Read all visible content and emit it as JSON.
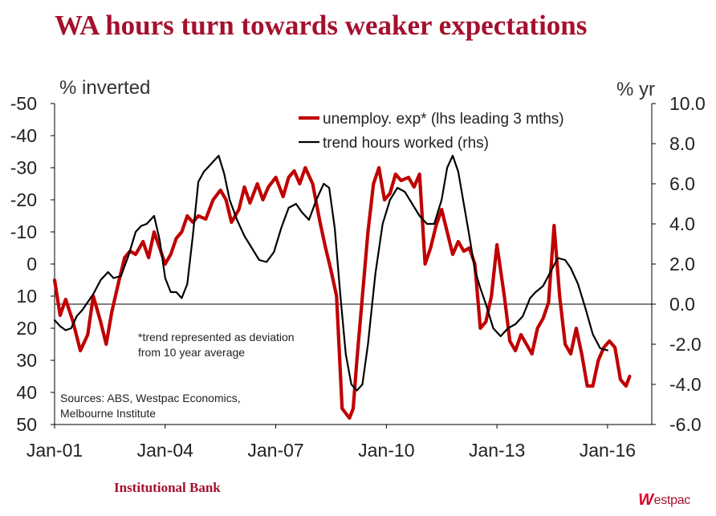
{
  "title": "WA hours turn towards weaker expectations",
  "logos": {
    "left": "Institutional Bank",
    "right_mark": "W",
    "right_text": "estpac"
  },
  "colors": {
    "title": "#a5102d",
    "series1": "#c00000",
    "series2": "#000000",
    "axis": "#000000"
  },
  "chart_data": {
    "type": "line",
    "ylabel_left": "% inverted",
    "ylabel_right": "% yr",
    "left_axis": {
      "min": -50,
      "max": 50,
      "inverted": true,
      "ticks": [
        "-50",
        "-40",
        "-30",
        "-20",
        "-10",
        "0",
        "10",
        "20",
        "30",
        "40",
        "50"
      ]
    },
    "right_axis": {
      "min": -6.0,
      "max": 10.0,
      "ticks": [
        "10.0",
        "8.0",
        "6.0",
        "4.0",
        "2.0",
        "0.0",
        "-2.0",
        "-4.0",
        "-6.0"
      ]
    },
    "x_axis": {
      "min": 2001.0,
      "max": 2017.2,
      "tick_labels": [
        "Jan-01",
        "Jan-04",
        "Jan-07",
        "Jan-10",
        "Jan-13",
        "Jan-16"
      ],
      "tick_values": [
        2001,
        2004,
        2007,
        2010,
        2013,
        2016
      ]
    },
    "legend": {
      "position": "top-right",
      "entries": [
        "unemploy. exp* (lhs leading 3 mths)",
        "trend hours worked (rhs)"
      ]
    },
    "annotations": [
      "*trend represented as deviation",
      "from 10 year average",
      "Sources: ABS, Westpac Economics,",
      "Melbourne Institute"
    ],
    "series": [
      {
        "name": "unemploy. exp* (lhs leading 3 mths)",
        "axis": "left",
        "x": [
          2001.0,
          2001.15,
          2001.3,
          2001.5,
          2001.7,
          2001.9,
          2002.05,
          2002.25,
          2002.4,
          2002.55,
          2002.75,
          2002.9,
          2003.05,
          2003.2,
          2003.4,
          2003.55,
          2003.7,
          2003.85,
          2004.0,
          2004.15,
          2004.3,
          2004.45,
          2004.6,
          2004.75,
          2004.9,
          2005.1,
          2005.3,
          2005.5,
          2005.65,
          2005.8,
          2006.0,
          2006.15,
          2006.3,
          2006.5,
          2006.65,
          2006.8,
          2007.0,
          2007.2,
          2007.35,
          2007.5,
          2007.65,
          2007.8,
          2008.0,
          2008.2,
          2008.35,
          2008.5,
          2008.65,
          2008.8,
          2009.0,
          2009.1,
          2009.2,
          2009.35,
          2009.5,
          2009.65,
          2009.8,
          2009.95,
          2010.1,
          2010.25,
          2010.4,
          2010.6,
          2010.75,
          2010.9,
          2011.05,
          2011.2,
          2011.35,
          2011.5,
          2011.65,
          2011.8,
          2011.95,
          2012.1,
          2012.25,
          2012.4,
          2012.55,
          2012.7,
          2012.85,
          2013.0,
          2013.2,
          2013.35,
          2013.5,
          2013.65,
          2013.8,
          2013.95,
          2014.1,
          2014.25,
          2014.4,
          2014.55,
          2014.7,
          2014.85,
          2015.0,
          2015.15,
          2015.3,
          2015.45,
          2015.6,
          2015.75,
          2015.9,
          2016.05,
          2016.2,
          2016.35,
          2016.5,
          2016.6
        ],
        "values": [
          5,
          16,
          11,
          18,
          27,
          22,
          10,
          18,
          25,
          15,
          5,
          -2,
          -4,
          -3,
          -7,
          -2,
          -10,
          -5,
          0,
          -3,
          -8,
          -10,
          -15,
          -13,
          -15,
          -14,
          -20,
          -23,
          -20,
          -13,
          -17,
          -24,
          -19,
          -25,
          -20,
          -24,
          -27,
          -21,
          -27,
          -29,
          -25,
          -30,
          -25,
          -13,
          -5,
          2,
          10,
          45,
          48,
          45,
          30,
          10,
          -10,
          -25,
          -30,
          -20,
          -22,
          -28,
          -26,
          -27,
          -24,
          -28,
          0,
          -5,
          -12,
          -17,
          -10,
          -3,
          -7,
          -4,
          -5,
          0,
          20,
          18,
          10,
          -6,
          10,
          24,
          27,
          22,
          25,
          28,
          20,
          17,
          12,
          -12,
          10,
          25,
          28,
          20,
          28,
          38,
          38,
          30,
          26,
          24,
          26,
          36,
          38,
          35
        ]
      },
      {
        "name": "trend hours worked (rhs)",
        "axis": "right",
        "x": [
          2001.0,
          2001.15,
          2001.3,
          2001.45,
          2001.6,
          2001.75,
          2001.9,
          2002.05,
          2002.25,
          2002.45,
          2002.6,
          2002.8,
          2003.0,
          2003.2,
          2003.35,
          2003.5,
          2003.7,
          2003.85,
          2004.0,
          2004.15,
          2004.3,
          2004.45,
          2004.6,
          2004.75,
          2004.9,
          2005.05,
          2005.25,
          2005.45,
          2005.6,
          2005.75,
          2005.95,
          2006.15,
          2006.35,
          2006.55,
          2006.75,
          2006.95,
          2007.15,
          2007.35,
          2007.55,
          2007.7,
          2007.9,
          2008.1,
          2008.3,
          2008.45,
          2008.6,
          2008.75,
          2008.9,
          2009.05,
          2009.2,
          2009.35,
          2009.5,
          2009.7,
          2009.9,
          2010.1,
          2010.3,
          2010.5,
          2010.7,
          2010.9,
          2011.1,
          2011.3,
          2011.5,
          2011.65,
          2011.8,
          2011.95,
          2012.1,
          2012.25,
          2012.4,
          2012.55,
          2012.7,
          2012.9,
          2013.1,
          2013.3,
          2013.5,
          2013.7,
          2013.9,
          2014.05,
          2014.25,
          2014.45,
          2014.65,
          2014.85,
          2015.0,
          2015.2,
          2015.4,
          2015.6,
          2015.8,
          2016.0
        ],
        "values": [
          -0.8,
          -1.1,
          -1.3,
          -1.2,
          -0.6,
          -0.3,
          0.1,
          0.5,
          1.2,
          1.6,
          1.3,
          1.4,
          2.4,
          3.6,
          3.9,
          4.0,
          4.4,
          3.2,
          1.3,
          0.6,
          0.6,
          0.3,
          1.0,
          3.4,
          6.1,
          6.6,
          7.0,
          7.4,
          6.5,
          5.2,
          4.2,
          3.4,
          2.8,
          2.2,
          2.1,
          2.6,
          3.8,
          4.8,
          5.0,
          4.6,
          4.2,
          5.2,
          6.0,
          5.8,
          3.8,
          0.5,
          -2.5,
          -4.0,
          -4.3,
          -4.0,
          -2.0,
          1.5,
          4.0,
          5.2,
          5.8,
          5.6,
          5.0,
          4.4,
          4.0,
          4.0,
          5.2,
          6.8,
          7.4,
          6.6,
          5.0,
          3.4,
          1.7,
          0.8,
          0.0,
          -1.2,
          -1.6,
          -1.2,
          -1.0,
          -0.6,
          0.3,
          0.6,
          0.9,
          1.6,
          2.3,
          2.2,
          1.8,
          1.0,
          -0.2,
          -1.5,
          -2.2,
          -2.3
        ]
      }
    ]
  }
}
